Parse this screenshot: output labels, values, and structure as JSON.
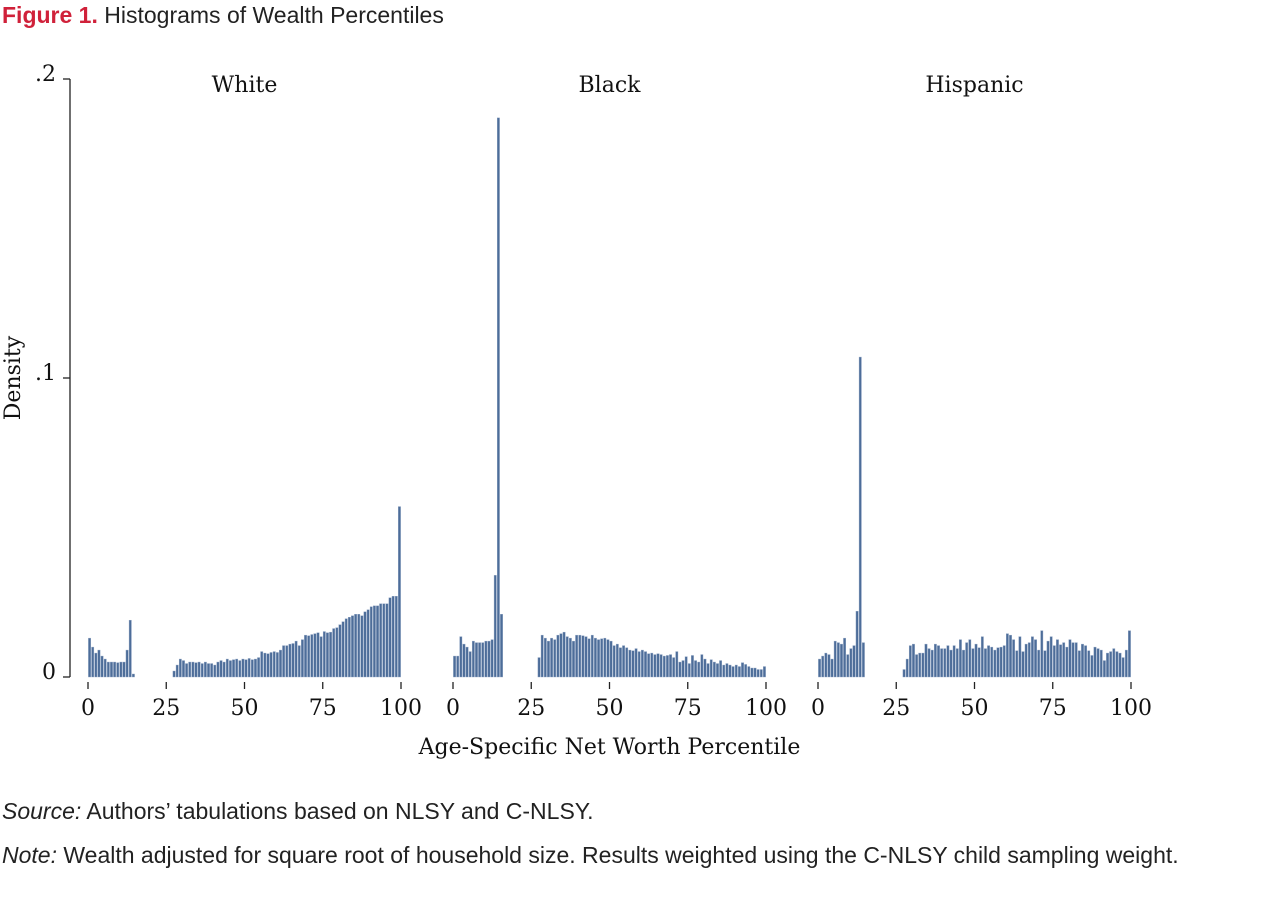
{
  "figure_label": "Figure 1.",
  "figure_title": "Histograms of Wealth Percentiles",
  "source": {
    "label": "Source:",
    "text": "Authors’ tabulations based on NLSY and C-NLSY."
  },
  "note": {
    "label": "Note:",
    "text": "Wealth adjusted for square root of household size. Results weighted using the C-NLSY child sampling weight."
  },
  "chart_data": [
    {
      "type": "histogram",
      "title": "White",
      "ylabel": "Density",
      "color": "#4d6d99",
      "xlim": [
        0,
        100
      ],
      "xticks": [
        0,
        25,
        50,
        75,
        100
      ],
      "ylim": [
        0,
        0.2
      ],
      "yticks": [
        {
          "value": 0,
          "label": "0"
        },
        {
          "value": 0.1,
          "label": ".1"
        },
        {
          "value": 0.2,
          "label": ".2"
        }
      ],
      "bins": [
        0,
        1,
        2,
        3,
        4,
        5,
        6,
        7,
        8,
        9,
        10,
        11,
        12,
        13,
        14,
        15,
        16,
        17,
        18,
        19,
        20,
        21,
        22,
        23,
        24,
        25,
        26,
        27,
        28,
        29,
        30,
        31,
        32,
        33,
        34,
        35,
        36,
        37,
        38,
        39,
        40,
        41,
        42,
        43,
        44,
        45,
        46,
        47,
        48,
        49,
        50,
        51,
        52,
        53,
        54,
        55,
        56,
        57,
        58,
        59,
        60,
        61,
        62,
        63,
        64,
        65,
        66,
        67,
        68,
        69,
        70,
        71,
        72,
        73,
        74,
        75,
        76,
        77,
        78,
        79,
        80,
        81,
        82,
        83,
        84,
        85,
        86,
        87,
        88,
        89,
        90,
        91,
        92,
        93,
        94,
        95,
        96,
        97,
        98,
        99,
        100
      ],
      "values": [
        0.013,
        0.01,
        0.008,
        0.009,
        0.007,
        0.006,
        0.005,
        0.005,
        0.005,
        0.0048,
        0.005,
        0.005,
        0.009,
        0.019,
        0.001,
        0,
        0,
        0,
        0,
        0,
        0,
        0,
        0,
        0,
        0,
        0,
        0,
        0.002,
        0.004,
        0.006,
        0.0055,
        0.0045,
        0.005,
        0.005,
        0.0048,
        0.005,
        0.0045,
        0.005,
        0.0045,
        0.0045,
        0.004,
        0.005,
        0.0055,
        0.005,
        0.006,
        0.0055,
        0.0058,
        0.006,
        0.0055,
        0.006,
        0.0058,
        0.0062,
        0.0058,
        0.006,
        0.0065,
        0.0085,
        0.008,
        0.0078,
        0.0082,
        0.0085,
        0.0082,
        0.009,
        0.0105,
        0.0105,
        0.011,
        0.0112,
        0.012,
        0.0105,
        0.0125,
        0.014,
        0.0138,
        0.0142,
        0.0145,
        0.0148,
        0.0135,
        0.0152,
        0.0148,
        0.015,
        0.0162,
        0.0165,
        0.0175,
        0.0185,
        0.0195,
        0.02,
        0.0205,
        0.021,
        0.021,
        0.0205,
        0.0218,
        0.0225,
        0.0235,
        0.0238,
        0.0238,
        0.0245,
        0.0245,
        0.0245,
        0.0265,
        0.027,
        0.027,
        0.057
      ]
    },
    {
      "type": "histogram",
      "title": "Black",
      "xlabel": "Age-Specific Net Worth Percentile",
      "color": "#4d6d99",
      "xlim": [
        0,
        100
      ],
      "xticks": [
        0,
        25,
        50,
        75,
        100
      ],
      "ylim": [
        0,
        0.2
      ],
      "bins": [
        0,
        1,
        2,
        3,
        4,
        5,
        6,
        7,
        8,
        9,
        10,
        11,
        12,
        13,
        14,
        15,
        16,
        17,
        18,
        19,
        20,
        21,
        22,
        23,
        24,
        25,
        26,
        27,
        28,
        29,
        30,
        31,
        32,
        33,
        34,
        35,
        36,
        37,
        38,
        39,
        40,
        41,
        42,
        43,
        44,
        45,
        46,
        47,
        48,
        49,
        50,
        51,
        52,
        53,
        54,
        55,
        56,
        57,
        58,
        59,
        60,
        61,
        62,
        63,
        64,
        65,
        66,
        67,
        68,
        69,
        70,
        71,
        72,
        73,
        74,
        75,
        76,
        77,
        78,
        79,
        80,
        81,
        82,
        83,
        84,
        85,
        86,
        87,
        88,
        89,
        90,
        91,
        92,
        93,
        94,
        95,
        96,
        97,
        98,
        99,
        100
      ],
      "values": [
        0.007,
        0.007,
        0.0135,
        0.011,
        0.01,
        0.0085,
        0.012,
        0.0115,
        0.0115,
        0.0115,
        0.012,
        0.012,
        0.0125,
        0.034,
        0.187,
        0.021,
        0,
        0,
        0,
        0,
        0,
        0,
        0,
        0,
        0,
        0,
        0,
        0.0065,
        0.014,
        0.013,
        0.012,
        0.013,
        0.0125,
        0.014,
        0.0145,
        0.015,
        0.0135,
        0.013,
        0.012,
        0.014,
        0.014,
        0.0138,
        0.0135,
        0.0128,
        0.014,
        0.013,
        0.0125,
        0.0128,
        0.013,
        0.0125,
        0.012,
        0.0105,
        0.011,
        0.0098,
        0.0105,
        0.0098,
        0.009,
        0.0088,
        0.0095,
        0.0085,
        0.009,
        0.0085,
        0.0078,
        0.008,
        0.0075,
        0.0078,
        0.0075,
        0.007,
        0.0072,
        0.0075,
        0.0065,
        0.0085,
        0.005,
        0.0055,
        0.0068,
        0.0045,
        0.0072,
        0.0055,
        0.005,
        0.0075,
        0.006,
        0.0045,
        0.0058,
        0.005,
        0.0045,
        0.0055,
        0.004,
        0.0045,
        0.004,
        0.0035,
        0.004,
        0.0035,
        0.0048,
        0.0042,
        0.0035,
        0.003,
        0.003,
        0.0025,
        0.0025,
        0.0035
      ]
    },
    {
      "type": "histogram",
      "title": "Hispanic",
      "color": "#4d6d99",
      "xlim": [
        0,
        100
      ],
      "xticks": [
        0,
        25,
        50,
        75,
        100
      ],
      "ylim": [
        0,
        0.2
      ],
      "bins": [
        0,
        1,
        2,
        3,
        4,
        5,
        6,
        7,
        8,
        9,
        10,
        11,
        12,
        13,
        14,
        15,
        16,
        17,
        18,
        19,
        20,
        21,
        22,
        23,
        24,
        25,
        26,
        27,
        28,
        29,
        30,
        31,
        32,
        33,
        34,
        35,
        36,
        37,
        38,
        39,
        40,
        41,
        42,
        43,
        44,
        45,
        46,
        47,
        48,
        49,
        50,
        51,
        52,
        53,
        54,
        55,
        56,
        57,
        58,
        59,
        60,
        61,
        62,
        63,
        64,
        65,
        66,
        67,
        68,
        69,
        70,
        71,
        72,
        73,
        74,
        75,
        76,
        77,
        78,
        79,
        80,
        81,
        82,
        83,
        84,
        85,
        86,
        87,
        88,
        89,
        90,
        91,
        92,
        93,
        94,
        95,
        96,
        97,
        98,
        99,
        100
      ],
      "values": [
        0.006,
        0.007,
        0.008,
        0.0075,
        0.006,
        0.012,
        0.0115,
        0.011,
        0.013,
        0.0075,
        0.0095,
        0.0105,
        0.022,
        0.107,
        0.0115,
        0,
        0,
        0,
        0,
        0,
        0,
        0,
        0,
        0,
        0,
        0,
        0,
        0.0025,
        0.006,
        0.0105,
        0.011,
        0.0075,
        0.008,
        0.008,
        0.011,
        0.0095,
        0.009,
        0.011,
        0.0105,
        0.0095,
        0.0095,
        0.0105,
        0.009,
        0.0105,
        0.0095,
        0.0125,
        0.009,
        0.0115,
        0.0125,
        0.0095,
        0.011,
        0.0098,
        0.0135,
        0.0095,
        0.0105,
        0.01,
        0.009,
        0.0098,
        0.01,
        0.0105,
        0.0145,
        0.014,
        0.0125,
        0.0088,
        0.0135,
        0.0085,
        0.011,
        0.0115,
        0.0135,
        0.0125,
        0.009,
        0.0155,
        0.0088,
        0.012,
        0.0135,
        0.0105,
        0.0125,
        0.0108,
        0.0115,
        0.01,
        0.0125,
        0.0115,
        0.0115,
        0.0088,
        0.011,
        0.0105,
        0.0088,
        0.0072,
        0.01,
        0.0095,
        0.009,
        0.0055,
        0.008,
        0.0085,
        0.0095,
        0.0085,
        0.008,
        0.0065,
        0.009,
        0.0155
      ]
    }
  ]
}
